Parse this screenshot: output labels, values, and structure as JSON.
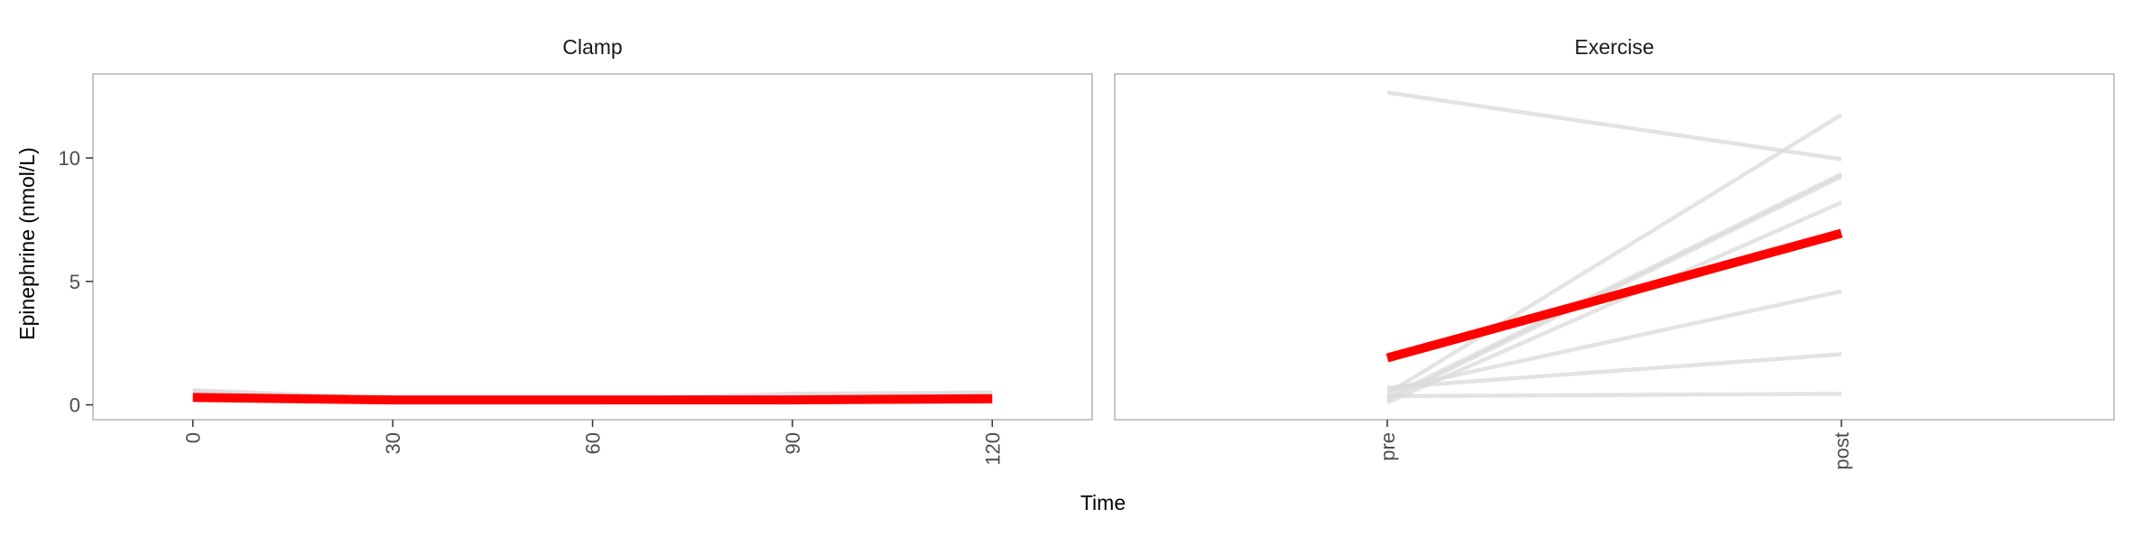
{
  "chart_data": {
    "type": "line",
    "xlabel": "Time",
    "ylabel": "Epinephrine (nmol/L)",
    "ylim": [
      -0.6,
      13.4
    ],
    "yticks": [
      0,
      5,
      10
    ],
    "shared_y": true,
    "colors": {
      "individual": "#d9d9d9",
      "mean": "#ff0000"
    },
    "panels": [
      {
        "title": "Clamp",
        "x": [
          "0",
          "30",
          "60",
          "90",
          "120"
        ],
        "xlim": [
          -15,
          135
        ],
        "xticks": [
          "0",
          "30",
          "60",
          "90",
          "120"
        ],
        "individuals": [
          [
            0.55,
            0.2,
            0.2,
            0.2,
            0.3
          ],
          [
            0.35,
            0.15,
            0.15,
            0.1,
            0.15
          ],
          [
            0.2,
            0.15,
            0.2,
            0.45,
            0.5
          ],
          [
            0.45,
            0.2,
            0.25,
            0.2,
            0.3
          ],
          [
            0.3,
            0.1,
            0.1,
            0.15,
            0.1
          ],
          [
            0.6,
            0.25,
            0.2,
            0.35,
            0.4
          ],
          [
            0.25,
            0.2,
            0.2,
            0.2,
            0.25
          ]
        ],
        "mean": [
          0.3,
          0.2,
          0.2,
          0.2,
          0.25
        ]
      },
      {
        "title": "Exercise",
        "x": [
          "pre",
          "post"
        ],
        "xticks": [
          "pre",
          "post"
        ],
        "individuals": [
          [
            12.65,
            9.95
          ],
          [
            0.45,
            11.75
          ],
          [
            0.3,
            9.35
          ],
          [
            0.2,
            9.25
          ],
          [
            0.1,
            8.2
          ],
          [
            0.6,
            4.6
          ],
          [
            0.7,
            2.05
          ],
          [
            0.35,
            0.45
          ]
        ],
        "mean": [
          1.9,
          6.95
        ]
      }
    ]
  }
}
